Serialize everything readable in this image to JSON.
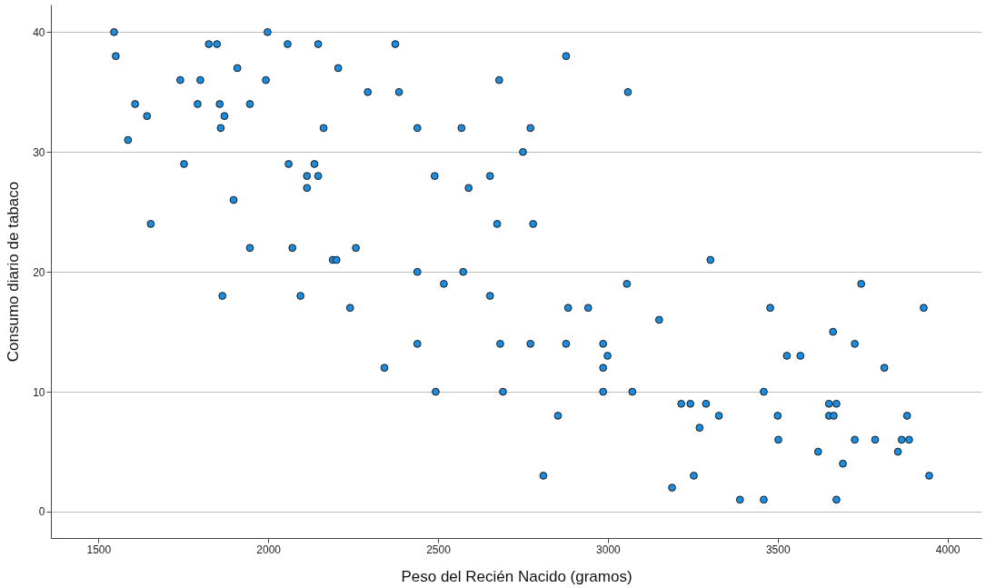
{
  "chart_data": {
    "type": "scatter",
    "xlabel": "Peso del Recién Nacido (gramos)",
    "ylabel": "Consumo diario de tabaco",
    "x": [
      1546,
      1998,
      1825,
      1849,
      2057,
      2147,
      1551,
      1909,
      2206,
      1741,
      1800,
      1993,
      2293,
      1608,
      1792,
      1857,
      1946,
      1643,
      1871,
      1860,
      2163,
      1587,
      1752,
      2060,
      2136,
      2114,
      2147,
      2114,
      1898,
      1654,
      1946,
      2071,
      2258,
      2190,
      2201,
      1865,
      2095,
      2241,
      2374,
      2877,
      2680,
      2385,
      3059,
      2439,
      2569,
      2772,
      2750,
      2490,
      2653,
      2590,
      2674,
      2780,
      2439,
      2574,
      2517,
      2653,
      2883,
      2942,
      3056,
      3151,
      2439,
      2683,
      2772,
      2877,
      2986,
      2999,
      2986,
      2342,
      2493,
      2691,
      2986,
      3072,
      2853,
      2810,
      3302,
      3746,
      3478,
      3930,
      3663,
      3727,
      3527,
      3567,
      3814,
      3459,
      3216,
      3243,
      3289,
      3651,
      3673,
      3327,
      3500,
      3651,
      3665,
      3881,
      3270,
      3502,
      3727,
      3787,
      3865,
      3887,
      3619,
      3854,
      3692,
      3253,
      3946,
      3189,
      3389,
      3459,
      3673
    ],
    "series": [
      {
        "color": "#1a8de0",
        "values": [
          40,
          40,
          39,
          39,
          39,
          39,
          38,
          37,
          37,
          36,
          36,
          36,
          35,
          34,
          34,
          34,
          34,
          33,
          33,
          32,
          32,
          31,
          29,
          29,
          29,
          28,
          28,
          27,
          26,
          24,
          22,
          22,
          22,
          21,
          21,
          18,
          18,
          17,
          39,
          38,
          36,
          35,
          35,
          32,
          32,
          32,
          30,
          28,
          28,
          27,
          24,
          24,
          20,
          20,
          19,
          18,
          17,
          17,
          19,
          16,
          14,
          14,
          14,
          14,
          14,
          13,
          12,
          12,
          10,
          10,
          10,
          10,
          8,
          3,
          21,
          19,
          17,
          17,
          15,
          14,
          13,
          13,
          12,
          10,
          9,
          9,
          9,
          9,
          9,
          8,
          8,
          8,
          8,
          8,
          7,
          6,
          6,
          6,
          6,
          6,
          5,
          5,
          4,
          3,
          3,
          2,
          1,
          1,
          1
        ]
      }
    ],
    "xlim": [
      1360,
      4100
    ],
    "ylim": [
      -2.2,
      42.3
    ],
    "xticks": [
      1500,
      2000,
      2500,
      3000,
      3500,
      4000
    ],
    "yticks": [
      0,
      10,
      20,
      30,
      40
    ],
    "grid": "y",
    "marker": "circle"
  }
}
